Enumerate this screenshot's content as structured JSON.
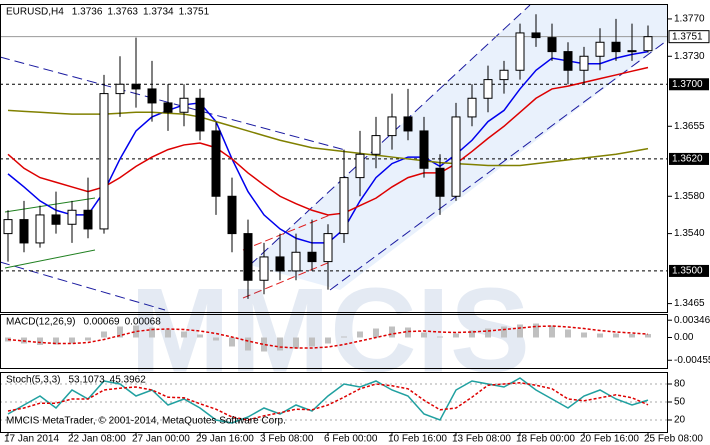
{
  "chart_data": [
    {
      "type": "candlestick",
      "title": "EURUSD,H4",
      "readings": [
        1.3736,
        1.3763,
        1.3734,
        1.3751
      ],
      "xticks": [
        {
          "value": 0,
          "label": "17 Jan 2014"
        },
        {
          "value": 4,
          "label": "22 Jan 08:00"
        },
        {
          "value": 8,
          "label": "27 Jan 00:00"
        },
        {
          "value": 12,
          "label": "29 Jan 16:00"
        },
        {
          "value": 16,
          "label": "3 Feb 08:00"
        },
        {
          "value": 20,
          "label": "6 Feb 00:00"
        },
        {
          "value": 24,
          "label": "10 Feb 16:00"
        },
        {
          "value": 28,
          "label": "13 Feb 08:00"
        },
        {
          "value": 32,
          "label": "18 Feb 00:00"
        },
        {
          "value": 36,
          "label": "20 Feb 16:00"
        },
        {
          "value": 40,
          "label": "25 Feb 08:00"
        }
      ],
      "ylim": [
        1.3456,
        1.3786
      ],
      "yticks": [
        {
          "value": 1.377,
          "label": "1.3770"
        },
        {
          "value": 1.373,
          "label": "1.3730"
        },
        1.3655,
        {
          "value": 1.358,
          "label": "1.3580"
        },
        {
          "value": 1.354,
          "label": "1.3540"
        },
        1.3465
      ],
      "levels": [
        {
          "value": 1.37,
          "label": "1.3700"
        },
        {
          "value": 1.362,
          "label": "1.3620"
        },
        {
          "value": 1.35,
          "label": "1.3500"
        }
      ],
      "last_price": 1.3751,
      "open": [
        1.354,
        1.3555,
        1.353,
        1.356,
        1.355,
        1.3565,
        1.3545,
        1.369,
        1.37,
        1.3695,
        1.368,
        1.367,
        1.3685,
        1.365,
        1.358,
        1.354,
        1.349,
        1.3515,
        1.35,
        1.352,
        1.351,
        1.354,
        1.36,
        1.3625,
        1.3645,
        1.3665,
        1.365,
        1.361,
        1.358,
        1.3665,
        1.3685,
        1.3705,
        1.3715,
        1.3755,
        1.375,
        1.3735,
        1.3715,
        1.373,
        1.3745,
        1.3735,
        1.3736
      ],
      "high": [
        1.3565,
        1.3575,
        1.357,
        1.3585,
        1.3575,
        1.36,
        1.371,
        1.373,
        1.375,
        1.3725,
        1.37,
        1.37,
        1.3695,
        1.366,
        1.36,
        1.3555,
        1.353,
        1.354,
        1.354,
        1.3555,
        1.355,
        1.363,
        1.365,
        1.3665,
        1.369,
        1.3695,
        1.3665,
        1.3625,
        1.368,
        1.37,
        1.372,
        1.3725,
        1.3765,
        1.3775,
        1.3765,
        1.3745,
        1.374,
        1.376,
        1.377,
        1.3765,
        1.3763
      ],
      "low": [
        1.351,
        1.352,
        1.3525,
        1.354,
        1.353,
        1.3535,
        1.354,
        1.3665,
        1.3675,
        1.366,
        1.365,
        1.3655,
        1.364,
        1.356,
        1.352,
        1.347,
        1.3475,
        1.349,
        1.349,
        1.35,
        1.348,
        1.353,
        1.358,
        1.361,
        1.363,
        1.364,
        1.36,
        1.356,
        1.3575,
        1.3655,
        1.367,
        1.369,
        1.3705,
        1.374,
        1.3725,
        1.37,
        1.37,
        1.3715,
        1.3725,
        1.3725,
        1.3734
      ],
      "close": [
        1.3555,
        1.353,
        1.356,
        1.355,
        1.3565,
        1.3545,
        1.369,
        1.37,
        1.3695,
        1.368,
        1.367,
        1.3685,
        1.365,
        1.358,
        1.354,
        1.349,
        1.3515,
        1.35,
        1.352,
        1.351,
        1.354,
        1.36,
        1.3625,
        1.3645,
        1.3665,
        1.365,
        1.361,
        1.358,
        1.3665,
        1.3685,
        1.3705,
        1.3715,
        1.3755,
        1.375,
        1.3735,
        1.3715,
        1.373,
        1.3745,
        1.3735,
        1.3736,
        1.3751
      ],
      "series": [
        {
          "color": "#0000ee",
          "values": [
            1.3604,
            1.359,
            1.3575,
            1.3565,
            1.356,
            1.356,
            1.3585,
            1.362,
            1.365,
            1.3665,
            1.3672,
            1.3678,
            1.368,
            1.366,
            1.362,
            1.3585,
            1.356,
            1.3545,
            1.3535,
            1.353,
            1.353,
            1.3545,
            1.3575,
            1.36,
            1.3615,
            1.3622,
            1.3622,
            1.3612,
            1.3625,
            1.364,
            1.366,
            1.3672,
            1.3695,
            1.3715,
            1.3728,
            1.3725,
            1.3722,
            1.3722,
            1.3728,
            1.3732,
            1.3735
          ]
        },
        {
          "color": "#dd0000",
          "values": [
            1.3625,
            1.361,
            1.36,
            1.3595,
            1.359,
            1.3585,
            1.359,
            1.36,
            1.3612,
            1.3622,
            1.363,
            1.3635,
            1.3637,
            1.3632,
            1.362,
            1.3605,
            1.3592,
            1.358,
            1.3572,
            1.3565,
            1.356,
            1.3562,
            1.357,
            1.3578,
            1.359,
            1.36,
            1.3605,
            1.3605,
            1.3615,
            1.3628,
            1.3642,
            1.3655,
            1.367,
            1.3685,
            1.3695,
            1.3698,
            1.3702,
            1.3706,
            1.371,
            1.3714,
            1.3718
          ]
        },
        {
          "color": "#808000",
          "values": [
            1.3672,
            1.3671,
            1.367,
            1.3669,
            1.3668,
            1.3668,
            1.3668,
            1.3669,
            1.367,
            1.367,
            1.3669,
            1.3668,
            1.3665,
            1.366,
            1.3655,
            1.365,
            1.3645,
            1.364,
            1.3636,
            1.3632,
            1.363,
            1.3628,
            1.3626,
            1.3624,
            1.3622,
            1.362,
            1.3618,
            1.3616,
            1.3615,
            1.3614,
            1.3613,
            1.3613,
            1.3613,
            1.3615,
            1.3617,
            1.3619,
            1.3621,
            1.3623,
            1.3625,
            1.3628,
            1.3631
          ]
        }
      ]
    },
    {
      "type": "macd",
      "title": "MACD(12,26,9)",
      "readings": [
        0.00069,
        0.00068
      ],
      "ylim": [
        -0.0061,
        0.0047
      ],
      "yticks": [
        0.00346,
        {
          "value": 0,
          "label": "0.00"
        },
        -0.00455
      ],
      "histogram": {
        "color": "#c0c0c0",
        "values": [
          -0.0008,
          -0.0012,
          -0.0015,
          -0.0014,
          -0.0012,
          -0.0006,
          0.0012,
          0.0022,
          0.0024,
          0.002,
          0.0016,
          0.0012,
          0.0006,
          -0.0006,
          -0.0018,
          -0.0026,
          -0.0028,
          -0.0026,
          -0.0022,
          -0.0018,
          -0.0012,
          0.0002,
          0.0012,
          0.0018,
          0.0022,
          0.002,
          0.001,
          0.0002,
          0.0008,
          0.0014,
          0.0018,
          0.0022,
          0.0026,
          0.0028,
          0.0024,
          0.0016,
          0.001,
          0.0008,
          0.0008,
          0.0007,
          0.00069
        ]
      },
      "signal": {
        "color": "#dd0000",
        "values": [
          -0.0004,
          -0.0007,
          -0.001,
          -0.0012,
          -0.0012,
          -0.001,
          -0.0004,
          0.0004,
          0.0012,
          0.0016,
          0.0017,
          0.0016,
          0.0013,
          0.0008,
          0.0001,
          -0.0007,
          -0.0014,
          -0.0019,
          -0.0021,
          -0.0021,
          -0.0019,
          -0.0014,
          -0.0007,
          0.0,
          0.0007,
          0.0012,
          0.0013,
          0.0011,
          0.001,
          0.0011,
          0.0013,
          0.0016,
          0.0019,
          0.0022,
          0.0023,
          0.0021,
          0.0018,
          0.0014,
          0.0011,
          0.0009,
          0.00068
        ]
      }
    },
    {
      "type": "stoch",
      "title": "Stoch(5,3,3)",
      "readings": [
        53.1073,
        45.3962
      ],
      "ylim": [
        0,
        100
      ],
      "yticks": [
        80,
        50,
        20
      ],
      "series": [
        {
          "color": "#20a0a0",
          "values": [
            30,
            45,
            60,
            40,
            70,
            55,
            85,
            80,
            60,
            70,
            45,
            55,
            40,
            20,
            15,
            25,
            40,
            30,
            45,
            35,
            60,
            80,
            75,
            85,
            70,
            60,
            30,
            20,
            70,
            85,
            80,
            75,
            90,
            70,
            55,
            40,
            60,
            70,
            55,
            45,
            53.1073
          ]
        },
        {
          "color": "#dd0000",
          "dashed": true,
          "values": [
            35,
            40,
            48,
            48,
            55,
            55,
            70,
            73,
            75,
            70,
            58,
            57,
            47,
            38,
            25,
            20,
            27,
            32,
            38,
            37,
            45,
            58,
            72,
            80,
            77,
            72,
            53,
            37,
            40,
            58,
            78,
            80,
            82,
            78,
            72,
            55,
            52,
            57,
            62,
            57,
            45.3962
          ]
        }
      ]
    }
  ],
  "watermark": "MMCIS",
  "footer": "MMCIS MetaTrader, © 2001-2014, MetaQuotes Software Corp."
}
